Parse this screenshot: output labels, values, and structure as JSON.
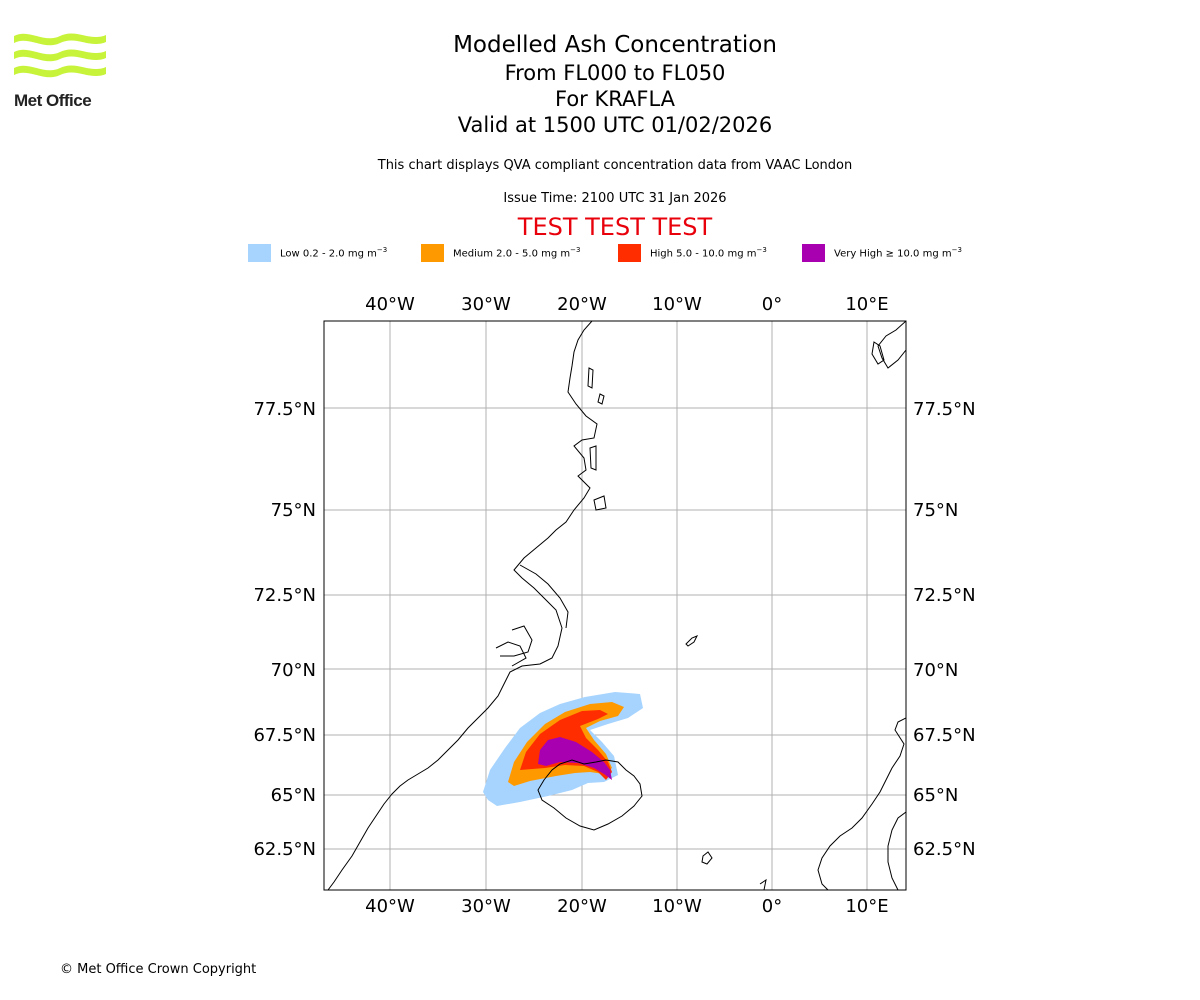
{
  "branding": {
    "logo_text": "Met Office",
    "logo_color": "#c7f43a"
  },
  "header": {
    "title": "Modelled Ash Concentration",
    "levels": "From FL000 to FL050",
    "volcano": "For KRAFLA",
    "valid": "Valid at 1500 UTC 01/02/2026",
    "description": "This chart displays QVA compliant concentration data from VAAC London",
    "issue_time": "Issue Time: 2100 UTC 31 Jan 2026",
    "test_banner": "TEST TEST TEST",
    "test_color": "#e8000b"
  },
  "legend": [
    {
      "label": "Low 0.2 - 2.0 mg m",
      "unit_exp": "−3",
      "color": "#a6d4ff"
    },
    {
      "label": "Medium 2.0 - 5.0 mg m",
      "unit_exp": "−3",
      "color": "#ff9900"
    },
    {
      "label": "High 5.0 - 10.0 mg m",
      "unit_exp": "−3",
      "color": "#ff2d00"
    },
    {
      "label": "Very High  ≥  10.0 mg m",
      "unit_exp": "−3",
      "color": "#a800b0"
    }
  ],
  "map": {
    "lon_labels": [
      "40°W",
      "30°W",
      "20°W",
      "10°W",
      "0°",
      "10°E"
    ],
    "lat_labels": [
      "77.5°N",
      "75°N",
      "72.5°N",
      "70°N",
      "67.5°N",
      "65°N",
      "62.5°N"
    ],
    "grid_color": "#b0b0b0"
  },
  "footer": {
    "copyright": "© Met Office Crown Copyright"
  }
}
